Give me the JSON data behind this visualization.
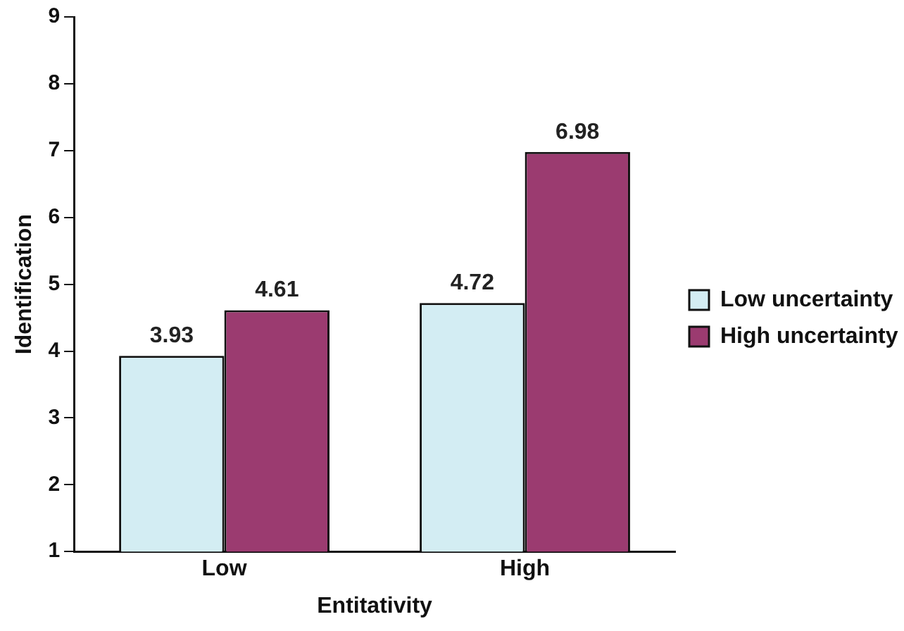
{
  "chart_data": {
    "type": "bar",
    "xlabel": "Entitativity",
    "ylabel": "Identification",
    "categories": [
      "Low",
      "High"
    ],
    "series": [
      {
        "name": "Low uncertainty",
        "color": "#d3edf3",
        "values": [
          3.93,
          4.72
        ]
      },
      {
        "name": "High uncertainty",
        "color": "#9b3b70",
        "values": [
          4.61,
          6.98
        ]
      }
    ],
    "ylim": [
      1,
      9
    ],
    "yticks": [
      1,
      2,
      3,
      4,
      5,
      6,
      7,
      8,
      9
    ],
    "grid": false,
    "legend": "right",
    "data_labels": true
  }
}
